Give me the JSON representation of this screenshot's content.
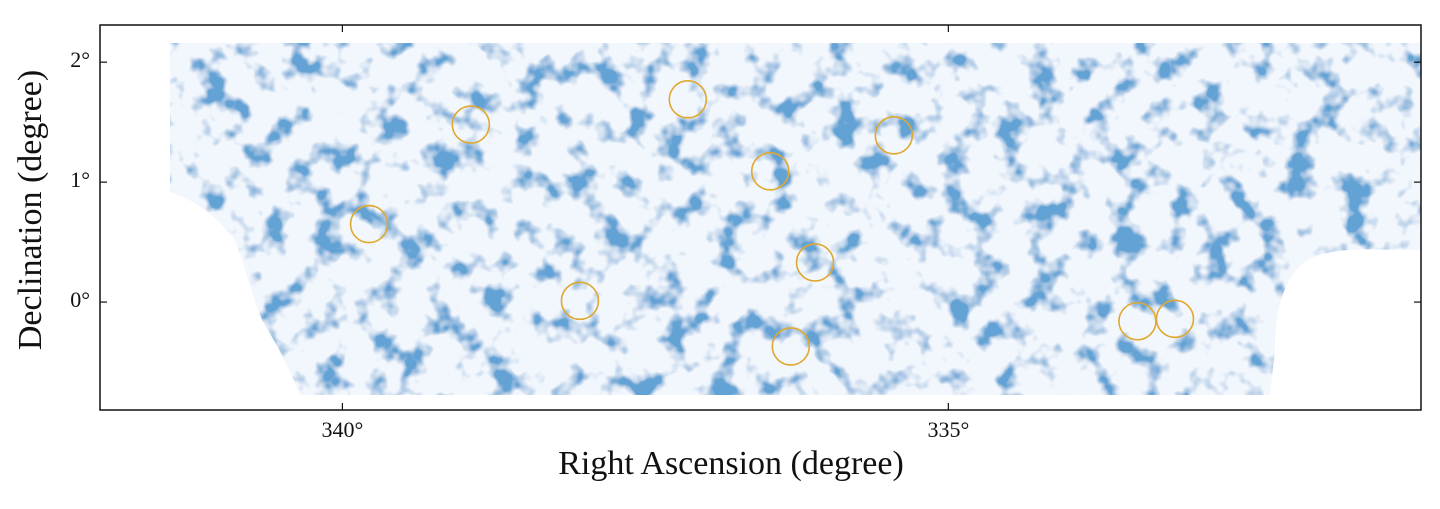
{
  "chart_data": {
    "type": "scatter",
    "xlabel": "Right Ascension (degree)",
    "ylabel": "Declination (degree)",
    "x": [
      339.78,
      338.94,
      337.15,
      336.47,
      335.45,
      336.1,
      338.04,
      336.3,
      333.44,
      333.13
    ],
    "values": [
      0.65,
      1.48,
      1.69,
      1.09,
      1.39,
      0.33,
      0.01,
      -0.37,
      -0.16,
      -0.14
    ],
    "color": "#e0a82e",
    "xlim": [
      342,
      331.1
    ],
    "ylim": [
      -0.9,
      2.31
    ],
    "xticks": [
      {
        "value": 340,
        "label": "340°"
      },
      {
        "value": 335,
        "label": "335°"
      }
    ],
    "yticks": [
      {
        "value": 0,
        "label": "0°"
      },
      {
        "value": 1,
        "label": "1°"
      },
      {
        "value": 2,
        "label": "2°"
      }
    ]
  }
}
